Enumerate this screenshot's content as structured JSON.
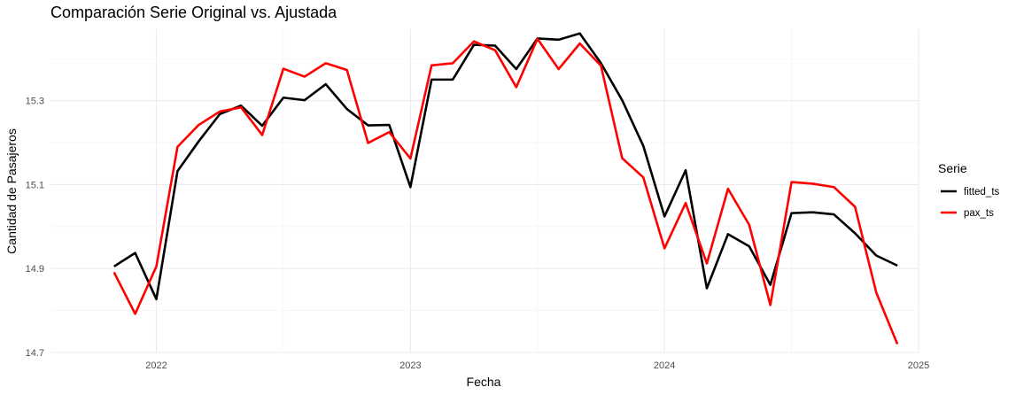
{
  "chart_data": {
    "type": "line",
    "title": "Comparación Serie Original vs. Ajustada",
    "xlabel": "Fecha",
    "ylabel": "Cantidad de Pasajeros",
    "x_ticks": [
      "2022",
      "2023",
      "2024",
      "2025"
    ],
    "y_ticks": [
      "14.7",
      "14.9",
      "15.1",
      "15.3"
    ],
    "ylim": [
      14.7,
      15.47
    ],
    "xlim": [
      "2021-08",
      "2025-01"
    ],
    "grid": true,
    "legend": {
      "title": "Serie",
      "placement": "right"
    },
    "x": [
      "2021-11",
      "2021-12",
      "2022-01",
      "2022-02",
      "2022-03",
      "2022-04",
      "2022-05",
      "2022-06",
      "2022-07",
      "2022-08",
      "2022-09",
      "2022-10",
      "2022-11",
      "2022-12",
      "2023-01",
      "2023-02",
      "2023-03",
      "2023-04",
      "2023-05",
      "2023-06",
      "2023-07",
      "2023-08",
      "2023-09",
      "2023-10",
      "2023-11",
      "2023-12",
      "2024-01",
      "2024-02",
      "2024-03",
      "2024-04",
      "2024-05",
      "2024-06",
      "2024-07",
      "2024-08",
      "2024-09",
      "2024-10",
      "2024-11",
      "2024-12"
    ],
    "series": [
      {
        "name": "fitted_ts",
        "color": "#000000",
        "values": [
          14.905,
          14.937,
          14.827,
          15.132,
          15.203,
          15.268,
          15.288,
          15.24,
          15.307,
          15.301,
          15.339,
          15.28,
          15.241,
          15.242,
          15.094,
          15.35,
          15.35,
          15.433,
          15.431,
          15.375,
          15.448,
          15.445,
          15.46,
          15.389,
          15.301,
          15.192,
          15.024,
          15.134,
          14.853,
          14.982,
          14.953,
          14.861,
          15.032,
          15.034,
          15.029,
          14.984,
          14.931,
          14.907
        ]
      },
      {
        "name": "pax_ts",
        "color": "#ff0000",
        "values": [
          14.891,
          14.792,
          14.905,
          15.19,
          15.242,
          15.274,
          15.284,
          15.218,
          15.376,
          15.357,
          15.389,
          15.373,
          15.199,
          15.225,
          15.162,
          15.384,
          15.389,
          15.441,
          15.42,
          15.332,
          15.447,
          15.375,
          15.436,
          15.383,
          15.163,
          15.117,
          14.948,
          15.056,
          14.912,
          15.09,
          15.004,
          14.813,
          15.106,
          15.102,
          15.094,
          15.047,
          14.843,
          14.72
        ]
      }
    ]
  }
}
